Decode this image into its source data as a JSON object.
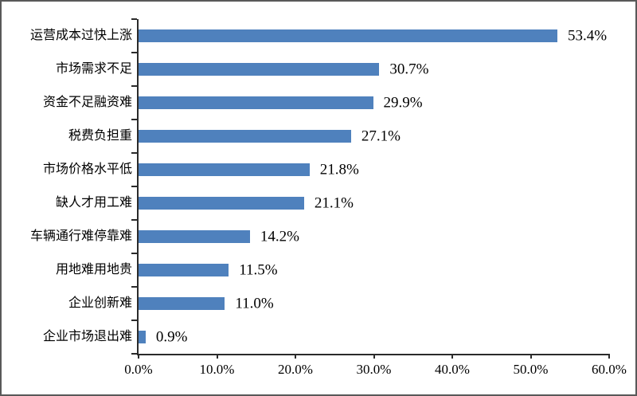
{
  "chart_data": {
    "type": "bar",
    "orientation": "horizontal",
    "title": "",
    "categories": [
      "运营成本过快上涨",
      "市场需求不足",
      "资金不足融资难",
      "税费负担重",
      "市场价格水平低",
      "缺人才用工难",
      "车辆通行难停靠难",
      "用地难用地贵",
      "企业创新难",
      "企业市场退出难"
    ],
    "values": [
      53.4,
      30.7,
      29.9,
      27.1,
      21.8,
      21.1,
      14.2,
      11.5,
      11.0,
      0.9
    ],
    "value_labels": [
      "53.4%",
      "30.7%",
      "29.9%",
      "27.1%",
      "21.8%",
      "21.1%",
      "14.2%",
      "11.5%",
      "11.0%",
      "0.9%"
    ],
    "xlim": [
      0,
      60
    ],
    "x_tick_step": 10,
    "x_tick_labels": [
      "0.0%",
      "10.0%",
      "20.0%",
      "30.0%",
      "40.0%",
      "50.0%",
      "60.0%"
    ],
    "bar_color": "#4F81BD",
    "axis_color": "#2b2b2b",
    "grid": false,
    "legend": false
  }
}
